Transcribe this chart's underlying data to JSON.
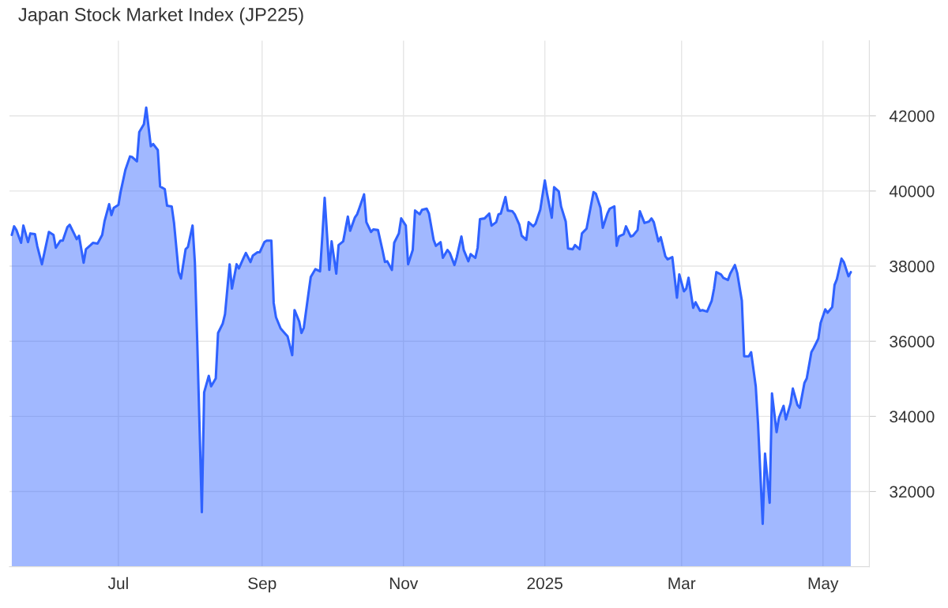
{
  "chart_data": {
    "type": "area",
    "title": "Japan Stock Market Index (JP225)",
    "x": [
      "2024-05-16",
      "2024-05-17",
      "2024-05-18",
      "2024-05-20",
      "2024-05-21",
      "2024-05-23",
      "2024-05-24",
      "2024-05-26",
      "2024-05-27",
      "2024-05-29",
      "2024-06-01",
      "2024-06-03",
      "2024-06-04",
      "2024-06-06",
      "2024-06-07",
      "2024-06-09",
      "2024-06-10",
      "2024-06-12",
      "2024-06-13",
      "2024-06-14",
      "2024-06-16",
      "2024-06-17",
      "2024-06-19",
      "2024-06-20",
      "2024-06-22",
      "2024-06-24",
      "2024-06-25",
      "2024-06-27",
      "2024-06-28",
      "2024-06-29",
      "2024-07-01",
      "2024-07-02",
      "2024-07-04",
      "2024-07-06",
      "2024-07-07",
      "2024-07-09",
      "2024-07-10",
      "2024-07-12",
      "2024-07-13",
      "2024-07-15",
      "2024-07-16",
      "2024-07-18",
      "2024-07-19",
      "2024-07-21",
      "2024-07-22",
      "2024-07-24",
      "2024-07-25",
      "2024-07-27",
      "2024-07-28",
      "2024-07-30",
      "2024-07-31",
      "2024-08-02",
      "2024-08-03",
      "2024-08-04",
      "2024-08-06",
      "2024-08-07",
      "2024-08-09",
      "2024-08-10",
      "2024-08-12",
      "2024-08-13",
      "2024-08-15",
      "2024-08-16",
      "2024-08-18",
      "2024-08-19",
      "2024-08-21",
      "2024-08-22",
      "2024-08-24",
      "2024-08-25",
      "2024-08-27",
      "2024-08-28",
      "2024-08-30",
      "2024-08-31",
      "2024-09-02",
      "2024-09-03",
      "2024-09-05",
      "2024-09-06",
      "2024-09-07",
      "2024-09-09",
      "2024-09-11",
      "2024-09-12",
      "2024-09-14",
      "2024-09-15",
      "2024-09-17",
      "2024-09-18",
      "2024-09-19",
      "2024-09-21",
      "2024-09-22",
      "2024-09-24",
      "2024-09-26",
      "2024-09-27",
      "2024-09-28",
      "2024-09-30",
      "2024-10-01",
      "2024-10-03",
      "2024-10-04",
      "2024-10-06",
      "2024-10-08",
      "2024-10-09",
      "2024-10-11",
      "2024-10-12",
      "2024-10-13",
      "2024-10-15",
      "2024-10-16",
      "2024-10-18",
      "2024-10-19",
      "2024-10-21",
      "2024-10-23",
      "2024-10-24",
      "2024-10-25",
      "2024-10-27",
      "2024-10-28",
      "2024-10-30",
      "2024-10-31",
      "2024-11-02",
      "2024-11-03",
      "2024-11-05",
      "2024-11-06",
      "2024-11-08",
      "2024-11-09",
      "2024-11-11",
      "2024-11-12",
      "2024-11-14",
      "2024-11-15",
      "2024-11-17",
      "2024-11-18",
      "2024-11-20",
      "2024-11-21",
      "2024-11-23",
      "2024-11-24",
      "2024-11-26",
      "2024-11-27",
      "2024-11-29",
      "2024-11-30",
      "2024-12-02",
      "2024-12-03",
      "2024-12-04",
      "2024-12-06",
      "2024-12-08",
      "2024-12-09",
      "2024-12-11",
      "2024-12-12",
      "2024-12-13",
      "2024-12-15",
      "2024-12-16",
      "2024-12-18",
      "2024-12-19",
      "2024-12-21",
      "2024-12-22",
      "2024-12-24",
      "2024-12-25",
      "2024-12-27",
      "2024-12-28",
      "2024-12-30",
      "2025-01-01",
      "2025-01-02",
      "2025-01-04",
      "2025-01-05",
      "2025-01-07",
      "2025-01-08",
      "2025-01-10",
      "2025-01-11",
      "2025-01-13",
      "2025-01-14",
      "2025-01-16",
      "2025-01-17",
      "2025-01-19",
      "2025-01-21",
      "2025-01-22",
      "2025-01-23",
      "2025-01-25",
      "2025-01-26",
      "2025-01-28",
      "2025-01-29",
      "2025-01-31",
      "2025-02-01",
      "2025-02-02",
      "2025-02-04",
      "2025-02-05",
      "2025-02-07",
      "2025-02-08",
      "2025-02-10",
      "2025-02-11",
      "2025-02-13",
      "2025-02-15",
      "2025-02-16",
      "2025-02-17",
      "2025-02-19",
      "2025-02-20",
      "2025-02-22",
      "2025-02-23",
      "2025-02-25",
      "2025-02-27",
      "2025-02-28",
      "2025-03-02",
      "2025-03-03",
      "2025-03-04",
      "2025-03-06",
      "2025-03-07",
      "2025-03-09",
      "2025-03-10",
      "2025-03-12",
      "2025-03-14",
      "2025-03-15",
      "2025-03-16",
      "2025-03-18",
      "2025-03-19",
      "2025-03-21",
      "2025-03-22",
      "2025-03-24",
      "2025-03-25",
      "2025-03-27",
      "2025-03-28",
      "2025-03-30",
      "2025-03-31",
      "2025-04-02",
      "2025-04-03",
      "2025-04-05",
      "2025-04-06",
      "2025-04-08",
      "2025-04-09",
      "2025-04-11",
      "2025-04-12",
      "2025-04-14",
      "2025-04-15",
      "2025-04-17",
      "2025-04-18",
      "2025-04-20",
      "2025-04-21",
      "2025-04-23",
      "2025-04-24",
      "2025-04-26",
      "2025-04-27",
      "2025-04-29",
      "2025-04-30",
      "2025-05-02",
      "2025-05-03",
      "2025-05-05",
      "2025-05-06",
      "2025-05-07",
      "2025-05-09",
      "2025-05-10",
      "2025-05-12",
      "2025-05-13"
    ],
    "series": [
      {
        "color": "#2f62ff",
        "values": [
          38830,
          39060,
          38960,
          38620,
          39080,
          38640,
          38870,
          38850,
          38530,
          38050,
          38910,
          38830,
          38490,
          38680,
          38680,
          39040,
          39100,
          38850,
          38720,
          38810,
          38090,
          38450,
          38560,
          38620,
          38600,
          38830,
          39190,
          39650,
          39360,
          39550,
          39630,
          39990,
          40560,
          40920,
          40900,
          40790,
          41570,
          41780,
          42220,
          41190,
          41250,
          41090,
          40120,
          40050,
          39610,
          39590,
          39150,
          37840,
          37670,
          38450,
          38510,
          39080,
          38090,
          36030,
          31450,
          34640,
          35080,
          34800,
          35010,
          36220,
          36470,
          36720,
          38050,
          37400,
          38050,
          37940,
          38220,
          38350,
          38110,
          38280,
          38370,
          38370,
          38640,
          38680,
          38680,
          37020,
          36640,
          36340,
          36200,
          36130,
          35630,
          36830,
          36530,
          36220,
          36360,
          37270,
          37710,
          37920,
          37860,
          38810,
          39820,
          37900,
          38660,
          37800,
          38560,
          38660,
          39320,
          38940,
          39290,
          39380,
          39550,
          39910,
          39170,
          38910,
          38980,
          38960,
          38410,
          38110,
          38130,
          37900,
          38620,
          38870,
          39270,
          39080,
          38050,
          38430,
          39480,
          39380,
          39500,
          39530,
          39400,
          38700,
          38540,
          38640,
          38220,
          38430,
          38350,
          38030,
          38240,
          38790,
          38430,
          38130,
          38320,
          38220,
          38490,
          39250,
          39270,
          39400,
          39080,
          39170,
          39380,
          39400,
          39840,
          39480,
          39460,
          39380,
          39100,
          38810,
          38700,
          39170,
          39060,
          39130,
          39500,
          40280,
          39910,
          39290,
          40100,
          39990,
          39590,
          39190,
          38470,
          38450,
          38560,
          38450,
          38870,
          39000,
          39650,
          39970,
          39930,
          39550,
          39020,
          39400,
          39530,
          39590,
          38540,
          38790,
          38850,
          39060,
          38790,
          38810,
          38960,
          39460,
          39150,
          39190,
          39270,
          39170,
          38660,
          38770,
          38260,
          38180,
          38240,
          37160,
          37780,
          37330,
          37400,
          37690,
          36890,
          37040,
          36810,
          36830,
          36790,
          37080,
          37400,
          37840,
          37780,
          37690,
          37630,
          37800,
          38030,
          37820,
          37080,
          35600,
          35600,
          35710,
          34800,
          33790,
          31140,
          33010,
          31700,
          34610,
          33580,
          33960,
          34280,
          33920,
          34340,
          34740,
          34300,
          34230,
          34890,
          35010,
          35710,
          35820,
          36070,
          36490,
          36850,
          36760,
          36910,
          37500,
          37650,
          38200,
          38110,
          37730,
          37840
        ]
      }
    ],
    "xlim": [
      "2024-05-15",
      "2025-05-21"
    ],
    "xticks": [
      {
        "value": "2024-07-01",
        "label": "Jul"
      },
      {
        "value": "2024-09-01",
        "label": "Sep"
      },
      {
        "value": "2024-11-01",
        "label": "Nov"
      },
      {
        "value": "2025-01-01",
        "label": "2025"
      },
      {
        "value": "2025-03-01",
        "label": "Mar"
      },
      {
        "value": "2025-05-01",
        "label": "May"
      }
    ],
    "ylim": [
      30000,
      44000
    ],
    "yticks": [
      32000,
      34000,
      36000,
      38000,
      40000,
      42000
    ],
    "grid": true
  }
}
